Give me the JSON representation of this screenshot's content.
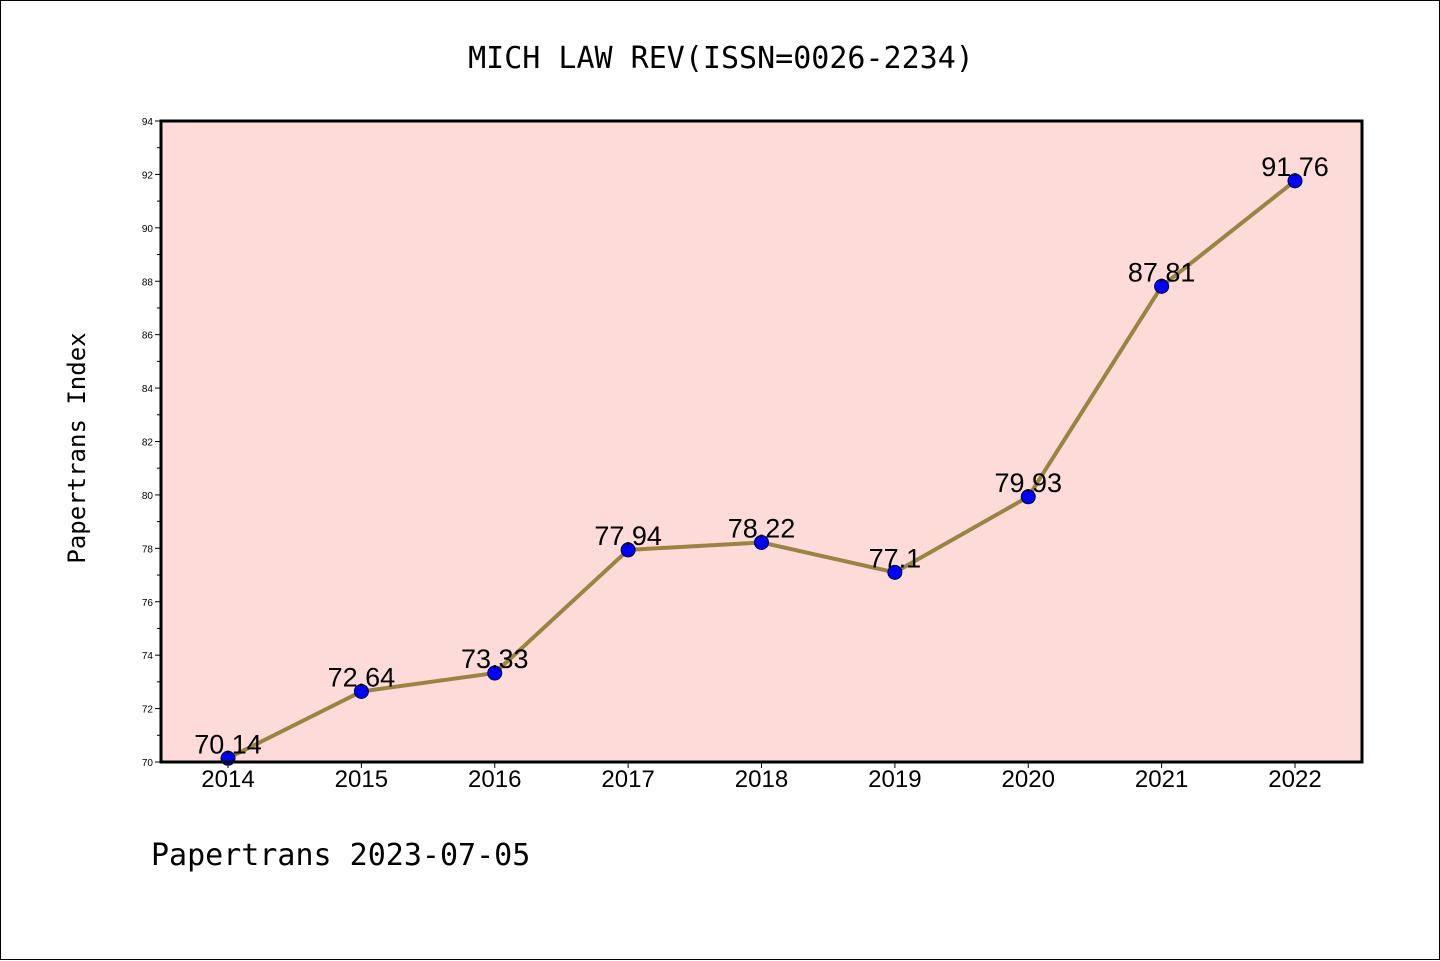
{
  "chart_data": {
    "type": "line",
    "title": "MICH LAW REV(ISSN=0026-2234)",
    "ylabel": "Papertrans Index",
    "xlabel": "",
    "categories": [
      "2014",
      "2015",
      "2016",
      "2017",
      "2018",
      "2019",
      "2020",
      "2021",
      "2022"
    ],
    "series": [
      {
        "values": [
          70.14,
          72.64,
          73.33,
          77.94,
          78.22,
          77.1,
          79.93,
          87.81,
          91.76
        ],
        "labels": [
          "70.14",
          "72.64",
          "73.33",
          "77.94",
          "78.22",
          "77.1",
          "79.93",
          "87.81",
          "91.76"
        ]
      }
    ],
    "ylim": [
      70,
      94
    ],
    "yticks": [
      "70",
      "72",
      "74",
      "76",
      "78",
      "80",
      "82",
      "84",
      "86",
      "88",
      "90",
      "92",
      "94"
    ],
    "grid": false,
    "colors": {
      "plot_background": "#fddbd8",
      "line": "#9a8441",
      "marker": "#0000ff"
    }
  },
  "footer": "Papertrans 2023-07-05"
}
